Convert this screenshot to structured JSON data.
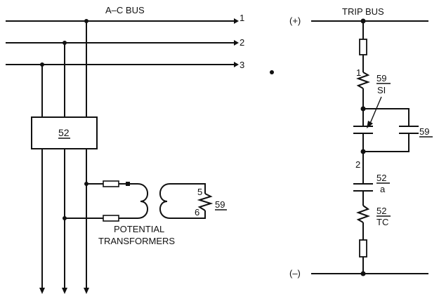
{
  "ac_bus": {
    "title": "A–C BUS",
    "phase_labels": [
      "1",
      "2",
      "3"
    ]
  },
  "breaker": {
    "label": "52"
  },
  "potential_transformers": {
    "title_line1": "POTENTIAL",
    "title_line2": "TRANSFORMERS",
    "terminal_upper": "5",
    "terminal_lower": "6",
    "relay_coil": "59"
  },
  "trip_bus": {
    "title": "TRIP BUS",
    "positive": "(+)",
    "negative": "(–)",
    "node1": "1",
    "node2": "2",
    "seal_in_coil_top": "59",
    "seal_in_coil_bottom": "SI",
    "relay_contact": "59",
    "aux_contact_top": "52",
    "aux_contact_bottom": "a",
    "trip_coil_top": "52",
    "trip_coil_bottom": "TC"
  }
}
